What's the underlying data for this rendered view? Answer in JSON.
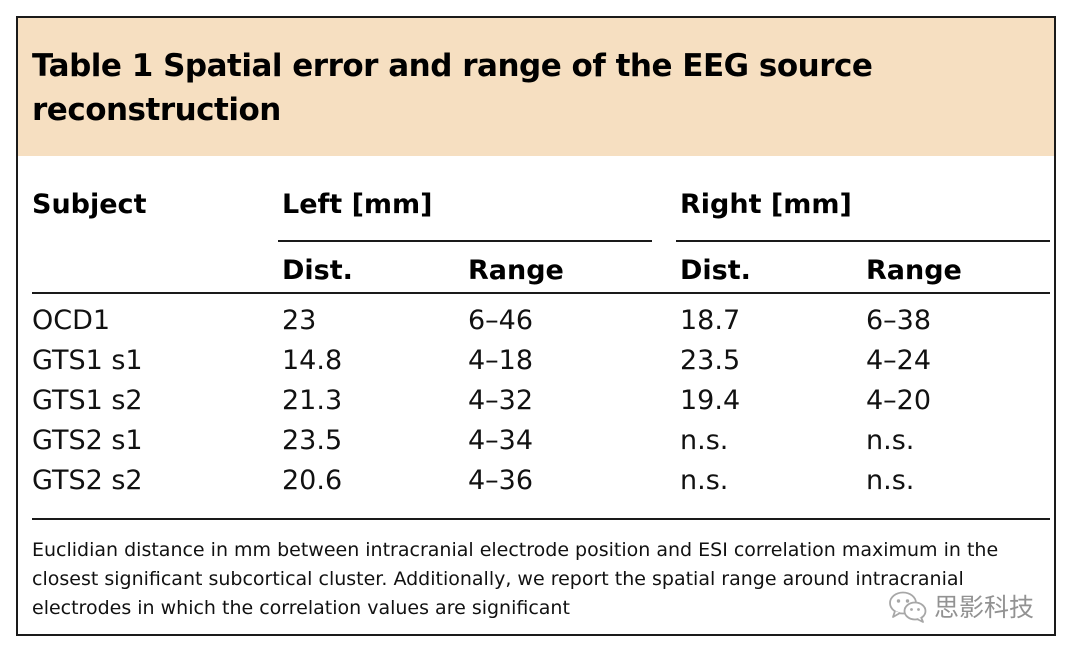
{
  "table": {
    "title": "Table 1 Spatial error and range of the EEG source reconstruction",
    "header": {
      "subject": "Subject",
      "left_group": "Left [mm]",
      "right_group": "Right [mm]",
      "left_dist": "Dist.",
      "left_range": "Range",
      "right_dist": "Dist.",
      "right_range": "Range"
    },
    "rows": [
      {
        "subject": "OCD1",
        "left_dist": "23",
        "left_range": "6–46",
        "right_dist": "18.7",
        "right_range": "6–38"
      },
      {
        "subject": "GTS1 s1",
        "left_dist": "14.8",
        "left_range": "4–18",
        "right_dist": "23.5",
        "right_range": "4–24"
      },
      {
        "subject": "GTS1 s2",
        "left_dist": "21.3",
        "left_range": "4–32",
        "right_dist": "19.4",
        "right_range": "4–20"
      },
      {
        "subject": "GTS2 s1",
        "left_dist": "23.5",
        "left_range": "4–34",
        "right_dist": "n.s.",
        "right_range": "n.s."
      },
      {
        "subject": "GTS2 s2",
        "left_dist": "20.6",
        "left_range": "4–36",
        "right_dist": "n.s.",
        "right_range": "n.s."
      }
    ],
    "footnote": "Euclidian distance in mm between intracranial electrode position and ESI correlation maximum in the closest significant subcortical cluster. Additionally, we report the spatial range around intracranial electrodes in which the correlation values are significant"
  },
  "watermark": {
    "icon": "wechat-logo-icon",
    "text": "思影科技"
  },
  "colors": {
    "title_band": "#f6dfc1",
    "rules": "#1a1a1a"
  }
}
